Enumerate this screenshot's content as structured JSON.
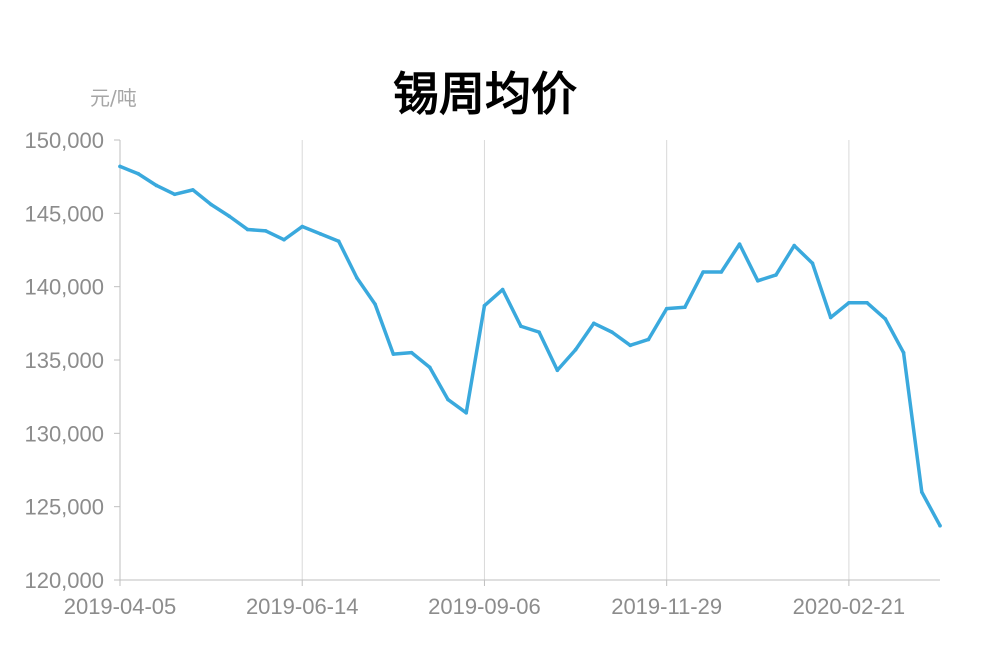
{
  "chart_data": {
    "type": "line",
    "title": "锡周均价",
    "ylabel": "元/吨",
    "xlabel": "",
    "ylim": [
      120000,
      150000
    ],
    "yticks": [
      120000,
      125000,
      130000,
      135000,
      140000,
      145000,
      150000
    ],
    "ytick_labels": [
      "120,000",
      "125,000",
      "130,000",
      "135,000",
      "140,000",
      "145,000",
      "150,000"
    ],
    "xtick_labels": [
      "2019-04-05",
      "2019-06-14",
      "2019-09-06",
      "2019-11-29",
      "2020-02-21"
    ],
    "xtick_indices": [
      0,
      10,
      20,
      30,
      40
    ],
    "grid": "vertical",
    "colors": {
      "line": "#3aa9dd",
      "grid": "#d9d9d9",
      "axis": "#bfbfbf"
    },
    "series": [
      {
        "values": [
          148200,
          147700,
          146900,
          146300,
          146600,
          145600,
          144800,
          143900,
          143800,
          143200,
          144100,
          143600,
          143100,
          140600,
          138800,
          135400,
          135500,
          134500,
          132300,
          131400,
          138700,
          139800,
          137300,
          136900,
          134300,
          135700,
          137500,
          136900,
          136000,
          136400,
          138500,
          138600,
          141000,
          141000,
          142900,
          140400,
          140800,
          142800,
          141600,
          137900,
          138900,
          138900,
          137800,
          135500,
          126000,
          123700
        ]
      }
    ]
  }
}
